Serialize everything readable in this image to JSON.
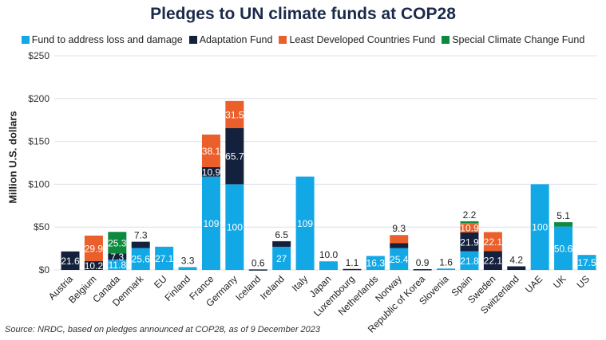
{
  "chart_data": {
    "type": "bar",
    "stacked": true,
    "title": "Pledges to UN climate funds at COP28",
    "ylabel": "Million U.S. dollars",
    "xlabel": "",
    "ylim": [
      0,
      250
    ],
    "yticks": [
      "$0",
      "$50",
      "$100",
      "$150",
      "$200",
      "$250"
    ],
    "grid": true,
    "legend_position": "top",
    "source": "Source: NRDC, based on pledges announced at COP28, as of 9 December 2023",
    "categories": [
      "Austria",
      "Belgium",
      "Canada",
      "Denmark",
      "EU",
      "Finland",
      "France",
      "Germany",
      "Iceland",
      "Ireland",
      "Italy",
      "Japan",
      "Luxembourg",
      "Netherlands",
      "Norway",
      "Republic of Korea",
      "Slovenia",
      "Spain",
      "Sweden",
      "Switzerland",
      "UAE",
      "UK",
      "US"
    ],
    "series": [
      {
        "name": "Fund to address loss and damage",
        "color": "#12a8e6",
        "values": [
          0,
          0,
          11.8,
          25.6,
          27.1,
          3.3,
          109,
          100,
          0,
          27,
          109,
          10.0,
          0,
          16.3,
          25.4,
          0,
          1.6,
          21.8,
          0,
          0,
          100,
          50.6,
          17.5
        ],
        "labels": [
          "",
          "",
          "11.8",
          "25.6",
          "27.1",
          "3.3",
          "109",
          "100",
          "",
          "27",
          "109",
          "10.0",
          "",
          "16.3",
          "25.4",
          "",
          "1.6",
          "21.8",
          "",
          "",
          "100",
          "50.6",
          "17.5"
        ]
      },
      {
        "name": "Adaptation Fund",
        "color": "#14213d",
        "values": [
          21.6,
          10.2,
          7.3,
          7.3,
          0,
          0,
          10.9,
          65.7,
          0.6,
          6.5,
          0,
          0,
          1.1,
          0,
          6,
          0.9,
          0,
          21.9,
          22.1,
          4.2,
          0,
          0,
          0
        ],
        "labels": [
          "21.6",
          "10.2",
          "7.3",
          "7.3",
          "",
          "",
          "10.9",
          "65.7",
          "0.6",
          "6.5",
          "",
          "",
          "1.1",
          "",
          "",
          "0.9",
          "",
          "21.9",
          "22.1",
          "4.2",
          "",
          "",
          ""
        ]
      },
      {
        "name": "Least Developed Countries Fund",
        "color": "#eb5f2a",
        "values": [
          0,
          29.9,
          0,
          0,
          0,
          0,
          38.1,
          31.5,
          0,
          0,
          0,
          0,
          0,
          0,
          9.3,
          0,
          0,
          10.9,
          22.1,
          0,
          0,
          0,
          0
        ],
        "labels": [
          "",
          "29.9",
          "",
          "",
          "",
          "",
          "38.1",
          "31.5",
          "",
          "",
          "",
          "",
          "",
          "",
          "9.3",
          "",
          "",
          "10.9",
          "22.1",
          "",
          "",
          "",
          ""
        ]
      },
      {
        "name": "Special Climate Change Fund",
        "color": "#0e8a3e",
        "values": [
          0,
          0,
          25.3,
          0,
          0,
          0,
          0,
          0,
          0,
          0,
          0,
          0,
          0,
          0,
          0,
          0,
          0,
          2.2,
          0,
          0,
          0,
          5.1,
          0
        ],
        "labels": [
          "",
          "",
          "25.3",
          "",
          "",
          "",
          "",
          "",
          "",
          "",
          "",
          "",
          "",
          "",
          "",
          "",
          "",
          "2.2",
          "",
          "",
          "",
          "5.1",
          ""
        ]
      }
    ]
  }
}
